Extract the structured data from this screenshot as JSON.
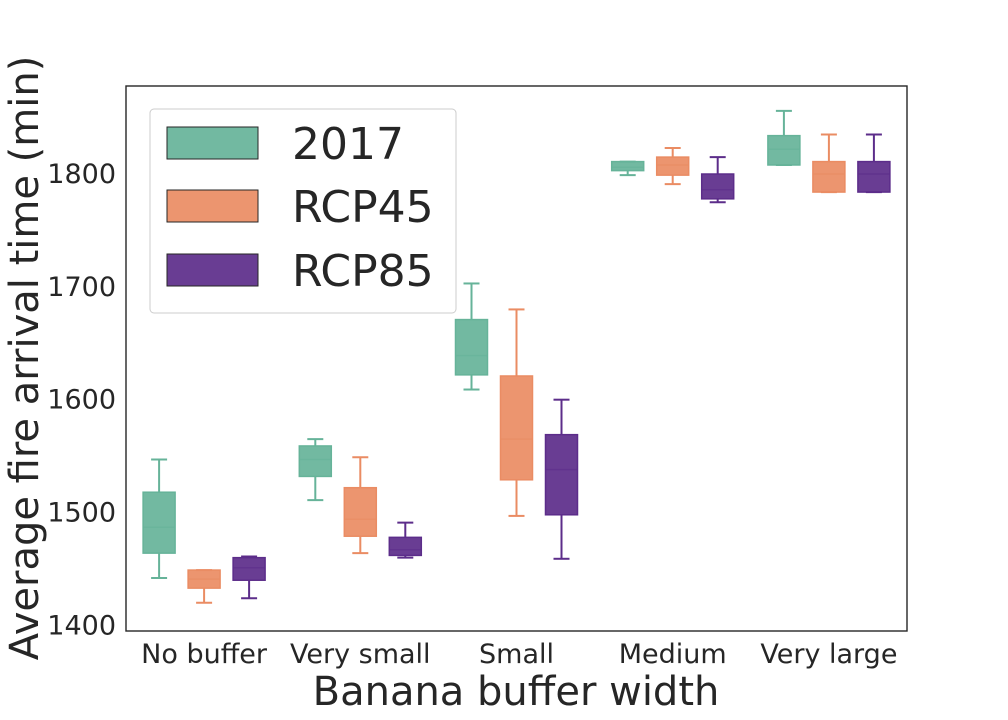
{
  "chart_data": {
    "type": "box",
    "xlabel": "Banana buffer width",
    "ylabel": "Average fire arrival time (min)",
    "categories": [
      "No buffer",
      "Very small",
      "Small",
      "Medium",
      "Very large"
    ],
    "ylim": [
      1395,
      1878
    ],
    "yticks": [
      "1400",
      "1500",
      "1600",
      "1700",
      "1800"
    ],
    "grid": false,
    "legend_position": "top-left",
    "series": [
      {
        "name": "2017",
        "color": "#66b399",
        "boxes": [
          {
            "whisker_low": 1442,
            "q1": 1464,
            "median": 1487,
            "q3": 1518,
            "whisker_high": 1547
          },
          {
            "whisker_low": 1511,
            "q1": 1532,
            "median": 1547,
            "q3": 1559,
            "whisker_high": 1565
          },
          {
            "whisker_low": 1609,
            "q1": 1622,
            "median": 1639,
            "q3": 1671,
            "whisker_high": 1703
          },
          {
            "whisker_low": 1799,
            "q1": 1803,
            "median": 1806,
            "q3": 1811,
            "whisker_high": 1811
          },
          {
            "whisker_low": 1808,
            "q1": 1808,
            "median": 1822,
            "q3": 1834,
            "whisker_high": 1856
          }
        ]
      },
      {
        "name": "RCP45",
        "color": "#ea8c63",
        "boxes": [
          {
            "whisker_low": 1420,
            "q1": 1433,
            "median": 1441,
            "q3": 1449,
            "whisker_high": 1449
          },
          {
            "whisker_low": 1464,
            "q1": 1479,
            "median": 1494,
            "q3": 1522,
            "whisker_high": 1549
          },
          {
            "whisker_low": 1497,
            "q1": 1529,
            "median": 1565,
            "q3": 1621,
            "whisker_high": 1680
          },
          {
            "whisker_low": 1791,
            "q1": 1799,
            "median": 1808,
            "q3": 1815,
            "whisker_high": 1823
          },
          {
            "whisker_low": 1784,
            "q1": 1784,
            "median": 1800,
            "q3": 1811,
            "whisker_high": 1835
          }
        ]
      },
      {
        "name": "RCP85",
        "color": "#5c2d8a",
        "boxes": [
          {
            "whisker_low": 1424,
            "q1": 1440,
            "median": 1451,
            "q3": 1460,
            "whisker_high": 1461
          },
          {
            "whisker_low": 1460,
            "q1": 1462,
            "median": 1467,
            "q3": 1478,
            "whisker_high": 1491
          },
          {
            "whisker_low": 1459,
            "q1": 1498,
            "median": 1538,
            "q3": 1569,
            "whisker_high": 1600
          },
          {
            "whisker_low": 1775,
            "q1": 1778,
            "median": 1786,
            "q3": 1800,
            "whisker_high": 1815
          },
          {
            "whisker_low": 1784,
            "q1": 1784,
            "median": 1800,
            "q3": 1811,
            "whisker_high": 1835
          }
        ]
      }
    ]
  }
}
